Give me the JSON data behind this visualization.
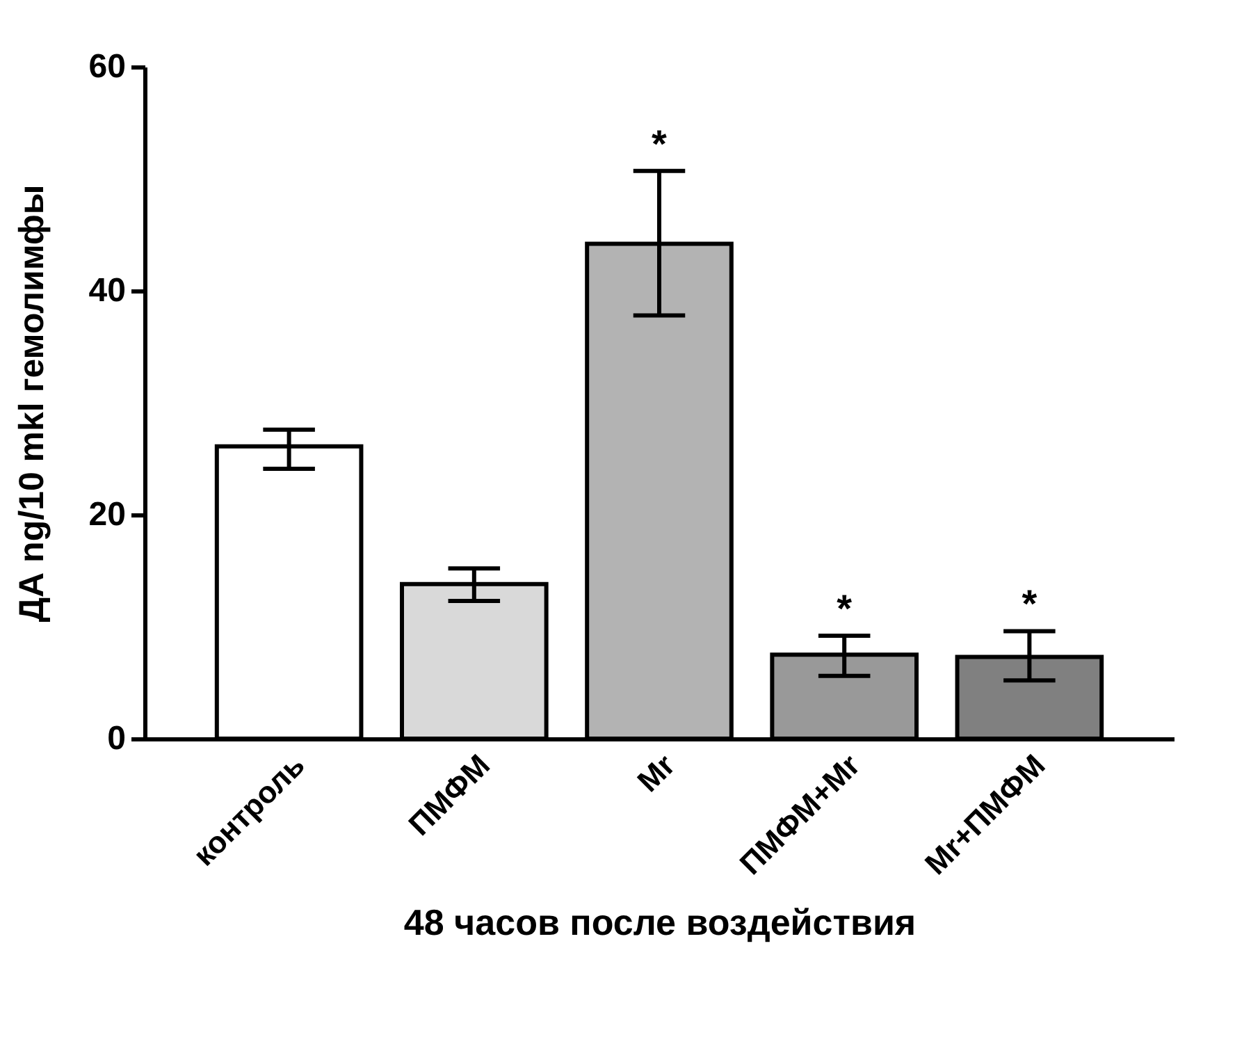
{
  "chart_data": {
    "type": "bar",
    "xlabel": "48 часов после воздействия",
    "ylabel": "ДА ng/10 mkl гемолимфы",
    "categories": [
      "контроль",
      "ПМФМ",
      "Mr",
      "ПМФМ+Mr",
      "Mr+ПМФМ"
    ],
    "values": [
      26.1,
      13.8,
      44.2,
      7.5,
      7.3
    ],
    "colors": [
      "#ffffff",
      "#d9d9d9",
      "#b3b3b3",
      "#999999",
      "#808080"
    ],
    "errors": [
      [
        24.1,
        27.6
      ],
      [
        12.3,
        15.2
      ],
      [
        37.8,
        50.7
      ],
      [
        5.6,
        9.2
      ],
      [
        5.2,
        9.6
      ]
    ],
    "value_labels": [
      null,
      null,
      "*",
      "*",
      "*"
    ],
    "ylim": [
      0,
      60
    ],
    "yticks": [
      0,
      20,
      40,
      60
    ],
    "grid": false,
    "legend": false
  }
}
